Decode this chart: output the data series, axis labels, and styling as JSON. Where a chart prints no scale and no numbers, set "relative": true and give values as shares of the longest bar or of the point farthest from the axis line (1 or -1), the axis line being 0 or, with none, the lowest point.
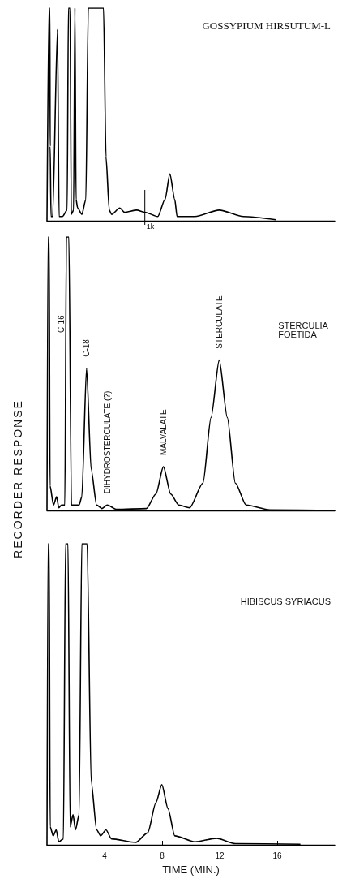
{
  "chart_data": [
    {
      "type": "line",
      "title": "GOSSYPIUM HIRSUTUM-L",
      "relative": true,
      "xlim": [
        0,
        20
      ],
      "xticks": [
        4,
        8,
        12,
        16
      ],
      "tick_labels": false,
      "grid": false,
      "marker": "none",
      "line_style": "solid",
      "ref_lines": [
        {
          "axis": "x",
          "value": 6.8,
          "label": "1k"
        }
      ],
      "series": [
        {
          "color": "#000000",
          "x": [
            0.0,
            0.14,
            0.2,
            0.22,
            0.28,
            0.39,
            0.73,
            0.84,
            1.07,
            1.4,
            1.49,
            1.6,
            1.69,
            1.85,
            1.94,
            2.02,
            2.13,
            2.42,
            2.7,
            2.87,
            3.4,
            3.93,
            4.1,
            4.33,
            4.49,
            5.06,
            5.39,
            6.24,
            6.8,
            7.7,
            8.2,
            8.54,
            8.88,
            9.04,
            10.28,
            11.97,
            13.65,
            15.9
          ],
          "values": [
            0,
            1,
            1,
            0.35,
            0.02,
            0.02,
            0.9,
            0.02,
            0.02,
            0.05,
            1,
            1,
            0.03,
            0.05,
            1,
            0.1,
            0.06,
            0.03,
            0.1,
            1,
            1,
            1,
            0.3,
            0.05,
            0.03,
            0.06,
            0.04,
            0.05,
            0.04,
            0.02,
            0.1,
            0.22,
            0.1,
            0.02,
            0.02,
            0.05,
            0.02,
            0.005
          ]
        }
      ]
    },
    {
      "type": "line",
      "title": "STERCULIA FOETIDA",
      "ylabel": "RECORDER RESPONSE",
      "relative": true,
      "xlim": [
        0,
        20
      ],
      "xticks": [
        4,
        8,
        12,
        16
      ],
      "tick_labels": false,
      "grid": false,
      "marker": "none",
      "line_style": "solid",
      "annotations": [
        {
          "text": "C-16",
          "x": 1.31,
          "y": 0.65
        },
        {
          "text": "C-18",
          "x": 2.75,
          "y": 0.52
        },
        {
          "text": "DIHYDROSTERCULATE (?)",
          "x": 4.19,
          "y": 0.02
        },
        {
          "text": "MALVALATE",
          "x": 8.09,
          "y": 0.16
        },
        {
          "text": "STERCULATE",
          "x": 11.97,
          "y": 0.55
        }
      ],
      "series": [
        {
          "color": "#000000",
          "x": [
            0.0,
            0.08,
            0.15,
            0.21,
            0.45,
            0.67,
            0.82,
            1.01,
            1.24,
            1.35,
            1.52,
            1.7,
            2.23,
            2.42,
            2.75,
            3.07,
            3.45,
            3.82,
            4.19,
            4.84,
            6.91,
            7.57,
            8.09,
            8.6,
            9.16,
            9.91,
            10.84,
            11.4,
            11.97,
            12.53,
            13.09,
            13.84,
            15.5,
            20.0
          ],
          "values": [
            0,
            1,
            1,
            0.09,
            0.02,
            0.05,
            0.01,
            0.02,
            0.02,
            1,
            1,
            0.02,
            0.02,
            0.05,
            0.52,
            0.15,
            0.02,
            0.007,
            0.02,
            0.004,
            0.007,
            0.06,
            0.16,
            0.06,
            0.02,
            0.01,
            0.1,
            0.34,
            0.55,
            0.34,
            0.1,
            0.02,
            0.002,
            0
          ]
        }
      ]
    },
    {
      "type": "line",
      "title": "HIBISCUS SYRIACUS",
      "xlabel": "TIME (MIN.)",
      "relative": true,
      "xlim": [
        0,
        20
      ],
      "xticks": [
        4,
        8,
        12,
        16
      ],
      "tick_labels": "x",
      "grid": false,
      "marker": "none",
      "line_style": "solid",
      "series": [
        {
          "color": "#000000",
          "x": [
            0.0,
            0.08,
            0.15,
            0.22,
            0.43,
            0.64,
            0.82,
            1.14,
            1.29,
            1.46,
            1.61,
            1.81,
            1.98,
            2.23,
            2.42,
            2.79,
            3.07,
            3.45,
            3.73,
            4.1,
            4.48,
            6.16,
            7.0,
            7.57,
            7.98,
            8.41,
            8.88,
            10.28,
            11.78,
            13.09,
            17.58
          ],
          "values": [
            0,
            1,
            1,
            0.06,
            0.03,
            0.05,
            0.01,
            0.02,
            1,
            1,
            0.06,
            0.1,
            0.05,
            0.1,
            1,
            1,
            0.21,
            0.05,
            0.03,
            0.05,
            0.02,
            0.008,
            0.04,
            0.14,
            0.2,
            0.12,
            0.03,
            0.01,
            0.022,
            0.004,
            0.002
          ]
        }
      ]
    }
  ]
}
